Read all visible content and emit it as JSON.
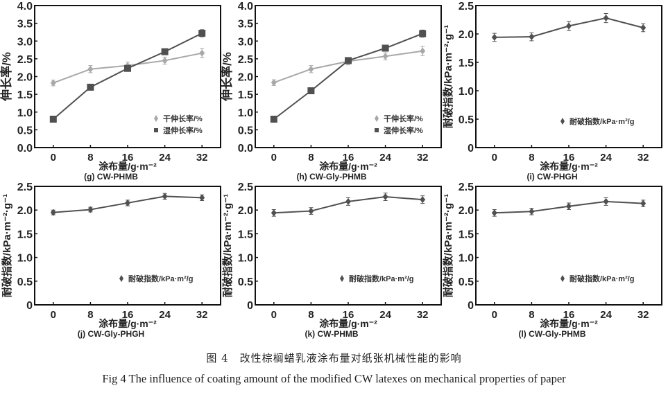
{
  "chart_data": [
    {
      "type": "line",
      "panel": "(g) CW-PHMB",
      "xlabel": "涂布量/g·m⁻²",
      "ylabel": "伸长率/%",
      "ylim": [
        0,
        4.0
      ],
      "yticks": [
        "0.0",
        "0.5",
        "1.0",
        "1.5",
        "2.0",
        "2.5",
        "3.0",
        "3.5",
        "4.0"
      ],
      "categories": [
        0,
        8,
        16,
        24,
        32
      ],
      "legend": "bottom-right",
      "series": [
        {
          "name": "干伸长率/%",
          "marker": "diamond",
          "color": "#a8a8a8",
          "values": [
            1.82,
            2.21,
            2.31,
            2.45,
            2.66
          ],
          "err": [
            0.08,
            0.1,
            0.1,
            0.1,
            0.13
          ]
        },
        {
          "name": "湿伸长率/%",
          "marker": "square",
          "color": "#505050",
          "values": [
            0.8,
            1.7,
            2.23,
            2.7,
            3.22
          ],
          "err": [
            0.04,
            0.05,
            0.06,
            0.08,
            0.1
          ]
        }
      ]
    },
    {
      "type": "line",
      "panel": "(h) CW-Gly-PHMB",
      "xlabel": "涂布量/g·m⁻²",
      "ylabel": "伸长率/%",
      "ylim": [
        0,
        4.0
      ],
      "yticks": [
        "0.0",
        "0.5",
        "1.0",
        "1.5",
        "2.0",
        "2.5",
        "3.0",
        "3.5",
        "4.0"
      ],
      "categories": [
        0,
        8,
        16,
        24,
        32
      ],
      "legend": "bottom-right",
      "series": [
        {
          "name": "干伸长率/%",
          "marker": "diamond",
          "color": "#a8a8a8",
          "values": [
            1.83,
            2.21,
            2.43,
            2.57,
            2.72
          ],
          "err": [
            0.08,
            0.1,
            0.1,
            0.1,
            0.13
          ]
        },
        {
          "name": "湿伸长率/%",
          "marker": "square",
          "color": "#505050",
          "values": [
            0.8,
            1.6,
            2.45,
            2.8,
            3.21
          ],
          "err": [
            0.04,
            0.05,
            0.06,
            0.08,
            0.1
          ]
        }
      ]
    },
    {
      "type": "line",
      "panel": "(i) CW-PHGH",
      "xlabel": "涂布量/g·m⁻²",
      "ylabel": "耐破指数/kPa·m⁻²·g⁻¹",
      "ylim": [
        0,
        2.5
      ],
      "yticks": [
        "0",
        "0.5",
        "1.0",
        "1.5",
        "2.0",
        "2.5"
      ],
      "categories": [
        0,
        8,
        16,
        24,
        32
      ],
      "legend": "bottom-right",
      "series": [
        {
          "name": "耐破指数/kPa·m²/g",
          "marker": "diamond",
          "color": "#505050",
          "values": [
            1.94,
            1.95,
            2.14,
            2.28,
            2.11
          ],
          "err": [
            0.07,
            0.07,
            0.08,
            0.08,
            0.07
          ]
        }
      ]
    },
    {
      "type": "line",
      "panel": "(j) CW-Gly-PHGH",
      "xlabel": "涂布量/g·m⁻²",
      "ylabel": "耐破指数/kPa·m⁻²·g⁻¹",
      "ylim": [
        0,
        2.5
      ],
      "yticks": [
        "0",
        "0.5",
        "1.0",
        "1.5",
        "2.0",
        "2.5"
      ],
      "categories": [
        0,
        8,
        16,
        24,
        32
      ],
      "legend": "bottom-right",
      "series": [
        {
          "name": "耐破指数/kPa·m²/g",
          "marker": "diamond",
          "color": "#505050",
          "values": [
            1.95,
            2.01,
            2.15,
            2.29,
            2.26
          ],
          "err": [
            0.05,
            0.05,
            0.06,
            0.06,
            0.06
          ]
        }
      ]
    },
    {
      "type": "line",
      "panel": "(k) CW-PHMB",
      "xlabel": "涂布量/g·m⁻²",
      "ylabel": "耐破指数/kPa·m⁻²·g⁻¹",
      "ylim": [
        0,
        2.5
      ],
      "yticks": [
        "0",
        "0.5",
        "1.0",
        "1.5",
        "2.0",
        "2.5"
      ],
      "categories": [
        0,
        8,
        16,
        24,
        32
      ],
      "legend": "bottom-right",
      "series": [
        {
          "name": "耐破指数/kPa·m²/g",
          "marker": "diamond",
          "color": "#505050",
          "values": [
            1.94,
            1.98,
            2.18,
            2.28,
            2.22
          ],
          "err": [
            0.07,
            0.07,
            0.08,
            0.08,
            0.08
          ]
        }
      ]
    },
    {
      "type": "line",
      "panel": "(l) CW-Gly-PHMB",
      "xlabel": "涂布量/g·m⁻²",
      "ylabel": "耐破指数/kPa·m⁻²·g⁻¹",
      "ylim": [
        0,
        2.5
      ],
      "yticks": [
        "0",
        "0.5",
        "1.0",
        "1.5",
        "2.0",
        "2.5"
      ],
      "categories": [
        0,
        8,
        16,
        24,
        32
      ],
      "legend": "bottom-right",
      "series": [
        {
          "name": "耐破指数/kPa·m²/g",
          "marker": "diamond",
          "color": "#505050",
          "values": [
            1.94,
            1.97,
            2.08,
            2.18,
            2.14
          ],
          "err": [
            0.07,
            0.07,
            0.07,
            0.08,
            0.07
          ]
        }
      ]
    }
  ],
  "caption_zh": "图 4　改性棕榈蜡乳液涂布量对纸张机械性能的影响",
  "caption_en": "Fig 4 The influence of coating amount of the modified CW latexes on mechanical properties of paper"
}
